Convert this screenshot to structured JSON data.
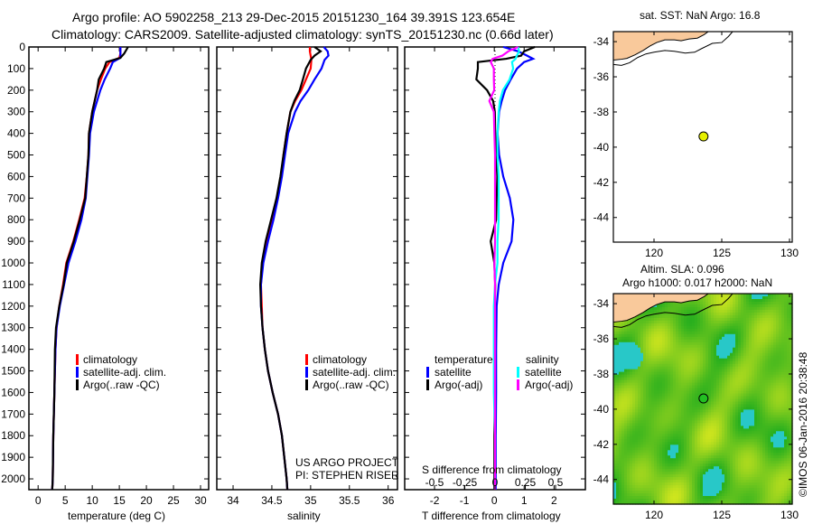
{
  "header": {
    "title_line1": "Argo profile: AO 5902258_213 29-Dec-2015 20151230_164 39.391S 123.654E",
    "title_line2": "Climatology: CARS2009. Satellite-adjusted climatology: synTS_20151230.nc (0.66d later)"
  },
  "colors": {
    "climatology": "#ff0000",
    "satellite": "#0000ff",
    "argo": "#000000",
    "sal_satellite": "#00ffff",
    "sal_argo": "#ff00ff",
    "land": "#f9c99b"
  },
  "chart_data": [
    {
      "type": "line",
      "id": "temperature",
      "xlabel": "temperature (deg C)",
      "ylabel": "",
      "xlim": [
        -1.7,
        31.5
      ],
      "ylim": [
        2050,
        0
      ],
      "xticks": [
        0,
        5,
        10,
        15,
        20,
        25,
        30
      ],
      "yticks": [
        0,
        100,
        200,
        300,
        400,
        500,
        600,
        700,
        800,
        900,
        1000,
        1100,
        1200,
        1300,
        1400,
        1500,
        1600,
        1700,
        1800,
        1900,
        2000
      ],
      "depth": [
        0,
        30,
        50,
        70,
        100,
        150,
        200,
        300,
        400,
        500,
        600,
        700,
        800,
        900,
        1000,
        1100,
        1200,
        1300,
        1400,
        1600,
        1800,
        2000,
        2050
      ],
      "series": [
        {
          "name": "climatology",
          "values": [
            15.2,
            15.2,
            15.0,
            13.2,
            12.4,
            11.6,
            10.9,
            10.0,
            9.4,
            9.3,
            9.0,
            8.6,
            7.6,
            6.5,
            5.2,
            4.6,
            3.9,
            3.4,
            3.2,
            3.0,
            2.8,
            2.7,
            2.6
          ]
        },
        {
          "name": "satellite-adj. clim.",
          "values": [
            15.2,
            15.2,
            15.2,
            13.8,
            13.3,
            12.3,
            11.5,
            10.3,
            9.6,
            9.4,
            9.1,
            8.8,
            8.0,
            6.9,
            5.6,
            4.8,
            4.0,
            3.4,
            3.2,
            3.0,
            2.8,
            2.7,
            2.6
          ]
        },
        {
          "name": "Argo(..raw -QC)",
          "values": [
            16.6,
            15.9,
            15.2,
            12.6,
            12.2,
            11.2,
            10.9,
            10.0,
            9.4,
            9.3,
            9.0,
            8.7,
            7.7,
            6.6,
            5.3,
            4.7,
            3.9,
            3.3,
            3.1,
            3.0,
            2.8,
            2.7,
            2.6
          ]
        }
      ],
      "legend": [
        "climatology",
        "satellite-adj. clim.",
        "Argo(..raw -QC)"
      ],
      "legend_placement": "bottom-center"
    },
    {
      "type": "line",
      "id": "salinity",
      "xlabel": "salinity",
      "xlim": [
        33.79,
        36.12
      ],
      "ylim": [
        2050,
        0
      ],
      "xticks": [
        34,
        34.5,
        35,
        35.5,
        36
      ],
      "xticklabels": [
        "34",
        "34.5",
        "35",
        "35.5",
        "36"
      ],
      "depth": [
        0,
        20,
        40,
        60,
        100,
        150,
        200,
        250,
        300,
        400,
        500,
        600,
        700,
        800,
        900,
        1000,
        1100,
        1200,
        1300,
        1400,
        1500,
        1600,
        1700,
        1800,
        1900,
        2000,
        2050
      ],
      "series": [
        {
          "name": "climatology",
          "values": [
            34.99,
            34.99,
            35.0,
            35.01,
            35.0,
            34.94,
            34.88,
            34.8,
            34.74,
            34.69,
            34.65,
            34.62,
            34.57,
            34.5,
            34.43,
            34.38,
            34.36,
            34.37,
            34.38,
            34.41,
            34.45,
            34.51,
            34.58,
            34.63,
            34.66,
            34.69,
            34.7
          ]
        },
        {
          "name": "satellite-adj. clim.",
          "values": [
            35.17,
            35.22,
            35.23,
            35.18,
            35.14,
            35.05,
            34.97,
            34.87,
            34.8,
            34.71,
            34.67,
            34.63,
            34.58,
            34.52,
            34.45,
            34.39,
            34.36,
            34.36,
            34.38,
            34.41,
            34.45,
            34.51,
            34.58,
            34.63,
            34.66,
            34.69,
            34.7
          ]
        },
        {
          "name": "Argo(..raw -QC)",
          "values": [
            35.05,
            35.13,
            35.05,
            35.0,
            34.94,
            34.9,
            34.86,
            34.79,
            34.74,
            34.69,
            34.65,
            34.61,
            34.56,
            34.49,
            34.42,
            34.37,
            34.35,
            34.36,
            34.38,
            34.41,
            34.45,
            34.51,
            34.58,
            34.63,
            34.66,
            34.69,
            34.7
          ]
        }
      ],
      "legend": [
        "climatology",
        "satellite-adj. clim.",
        "Argo(..raw -QC)"
      ],
      "annotation_line1": "US ARGO PROJECT",
      "annotation_line2": "PI: STEPHEN RISER"
    },
    {
      "type": "line",
      "id": "difference",
      "xlabel": "T difference from climatology",
      "x2label": "S difference from climatology",
      "xlim": [
        -3.0,
        3.05
      ],
      "x2lim": [
        -0.5,
        0.5
      ],
      "xticks": [
        -2,
        -1,
        0,
        1,
        2
      ],
      "x2ticks": [
        -0.5,
        -0.25,
        0,
        0.25,
        0.5
      ],
      "x2ticklabels": [
        "-0.5",
        "-0.25",
        "0",
        "0.25",
        "0.5"
      ],
      "depth": [
        0,
        20,
        40,
        55,
        70,
        100,
        150,
        200,
        250,
        300,
        400,
        500,
        600,
        700,
        800,
        900,
        1000,
        1100,
        1200,
        1400,
        1600,
        1800,
        2000,
        2050
      ],
      "series": [
        {
          "name": "temperature satellite",
          "axis": "T",
          "values": [
            0.3,
            0.8,
            1.1,
            1.3,
            1.0,
            0.76,
            0.55,
            0.36,
            0.25,
            0.16,
            0.11,
            0.16,
            0.3,
            0.52,
            0.64,
            0.58,
            0.3,
            0.15,
            0.08,
            0.06,
            0.06,
            0.05,
            0.05,
            0.05
          ]
        },
        {
          "name": "temperature Argo(-adj)",
          "axis": "T",
          "values": [
            1.36,
            1.0,
            0.9,
            0.4,
            -0.55,
            -0.55,
            -0.6,
            -0.24,
            -0.04,
            0.02,
            0.03,
            0.06,
            0.1,
            0.08,
            0.06,
            -0.12,
            0.0,
            0.03,
            0.02,
            0.02,
            0.02,
            0.0,
            0.0,
            0.0
          ]
        },
        {
          "name": "salinity satellite",
          "axis": "S",
          "values": [
            0.19,
            0.2,
            0.18,
            0.17,
            0.14,
            0.15,
            0.12,
            0.065,
            0.04,
            0.03,
            0.02,
            0.02,
            0.03,
            0.03,
            0.03,
            0.02,
            0.02,
            0.0,
            -0.01,
            -0.01,
            -0.01,
            0.0,
            0.0,
            0.0
          ]
        },
        {
          "name": "salinity Argo(-adj)",
          "axis": "S",
          "values": [
            0.19,
            0.11,
            0.06,
            -0.02,
            -0.035,
            -0.01,
            -0.01,
            -0.007,
            -0.047,
            -0.01,
            -0.005,
            0.0,
            0.0,
            0.0,
            0.0,
            0.0,
            -0.005,
            0.0,
            0.0,
            0.0,
            0.0,
            0.0,
            0.0,
            0.0
          ]
        }
      ],
      "legend_temperature_title": "temperature",
      "legend_salinity_title": "salinity",
      "legend_t_sat": "satellite",
      "legend_t_argo": "Argo(-adj)",
      "legend_s_sat": "satellite",
      "legend_s_argo": "Argo(-adj)"
    },
    {
      "type": "map",
      "id": "sst-map",
      "title": "sat. SST: NaN Argo: 16.8",
      "lonlim": [
        117.0,
        130.2
      ],
      "latlim": [
        -45.4,
        -33.43
      ],
      "xticks": [
        120,
        125,
        130
      ],
      "yticks": [
        -34,
        -36,
        -38,
        -40,
        -42,
        -44
      ],
      "float": {
        "lon": 123.654,
        "lat": -39.391,
        "color": "#e6f000"
      }
    },
    {
      "type": "map",
      "id": "sla-map",
      "title_line1": "Altim. SLA: 0.096",
      "title_line2": "Argo h1000: 0.017 h2000: NaN",
      "lonlim": [
        117.0,
        130.2
      ],
      "latlim": [
        -45.4,
        -33.43
      ],
      "xticks": [
        120,
        125,
        130
      ],
      "yticks": [
        -34,
        -36,
        -38,
        -40,
        -42,
        -44
      ],
      "float": {
        "lon": 123.654,
        "lat": -39.391,
        "color": "#22c022"
      },
      "credit": "©IMOS 06-Jan-2016 20:38:48"
    }
  ]
}
